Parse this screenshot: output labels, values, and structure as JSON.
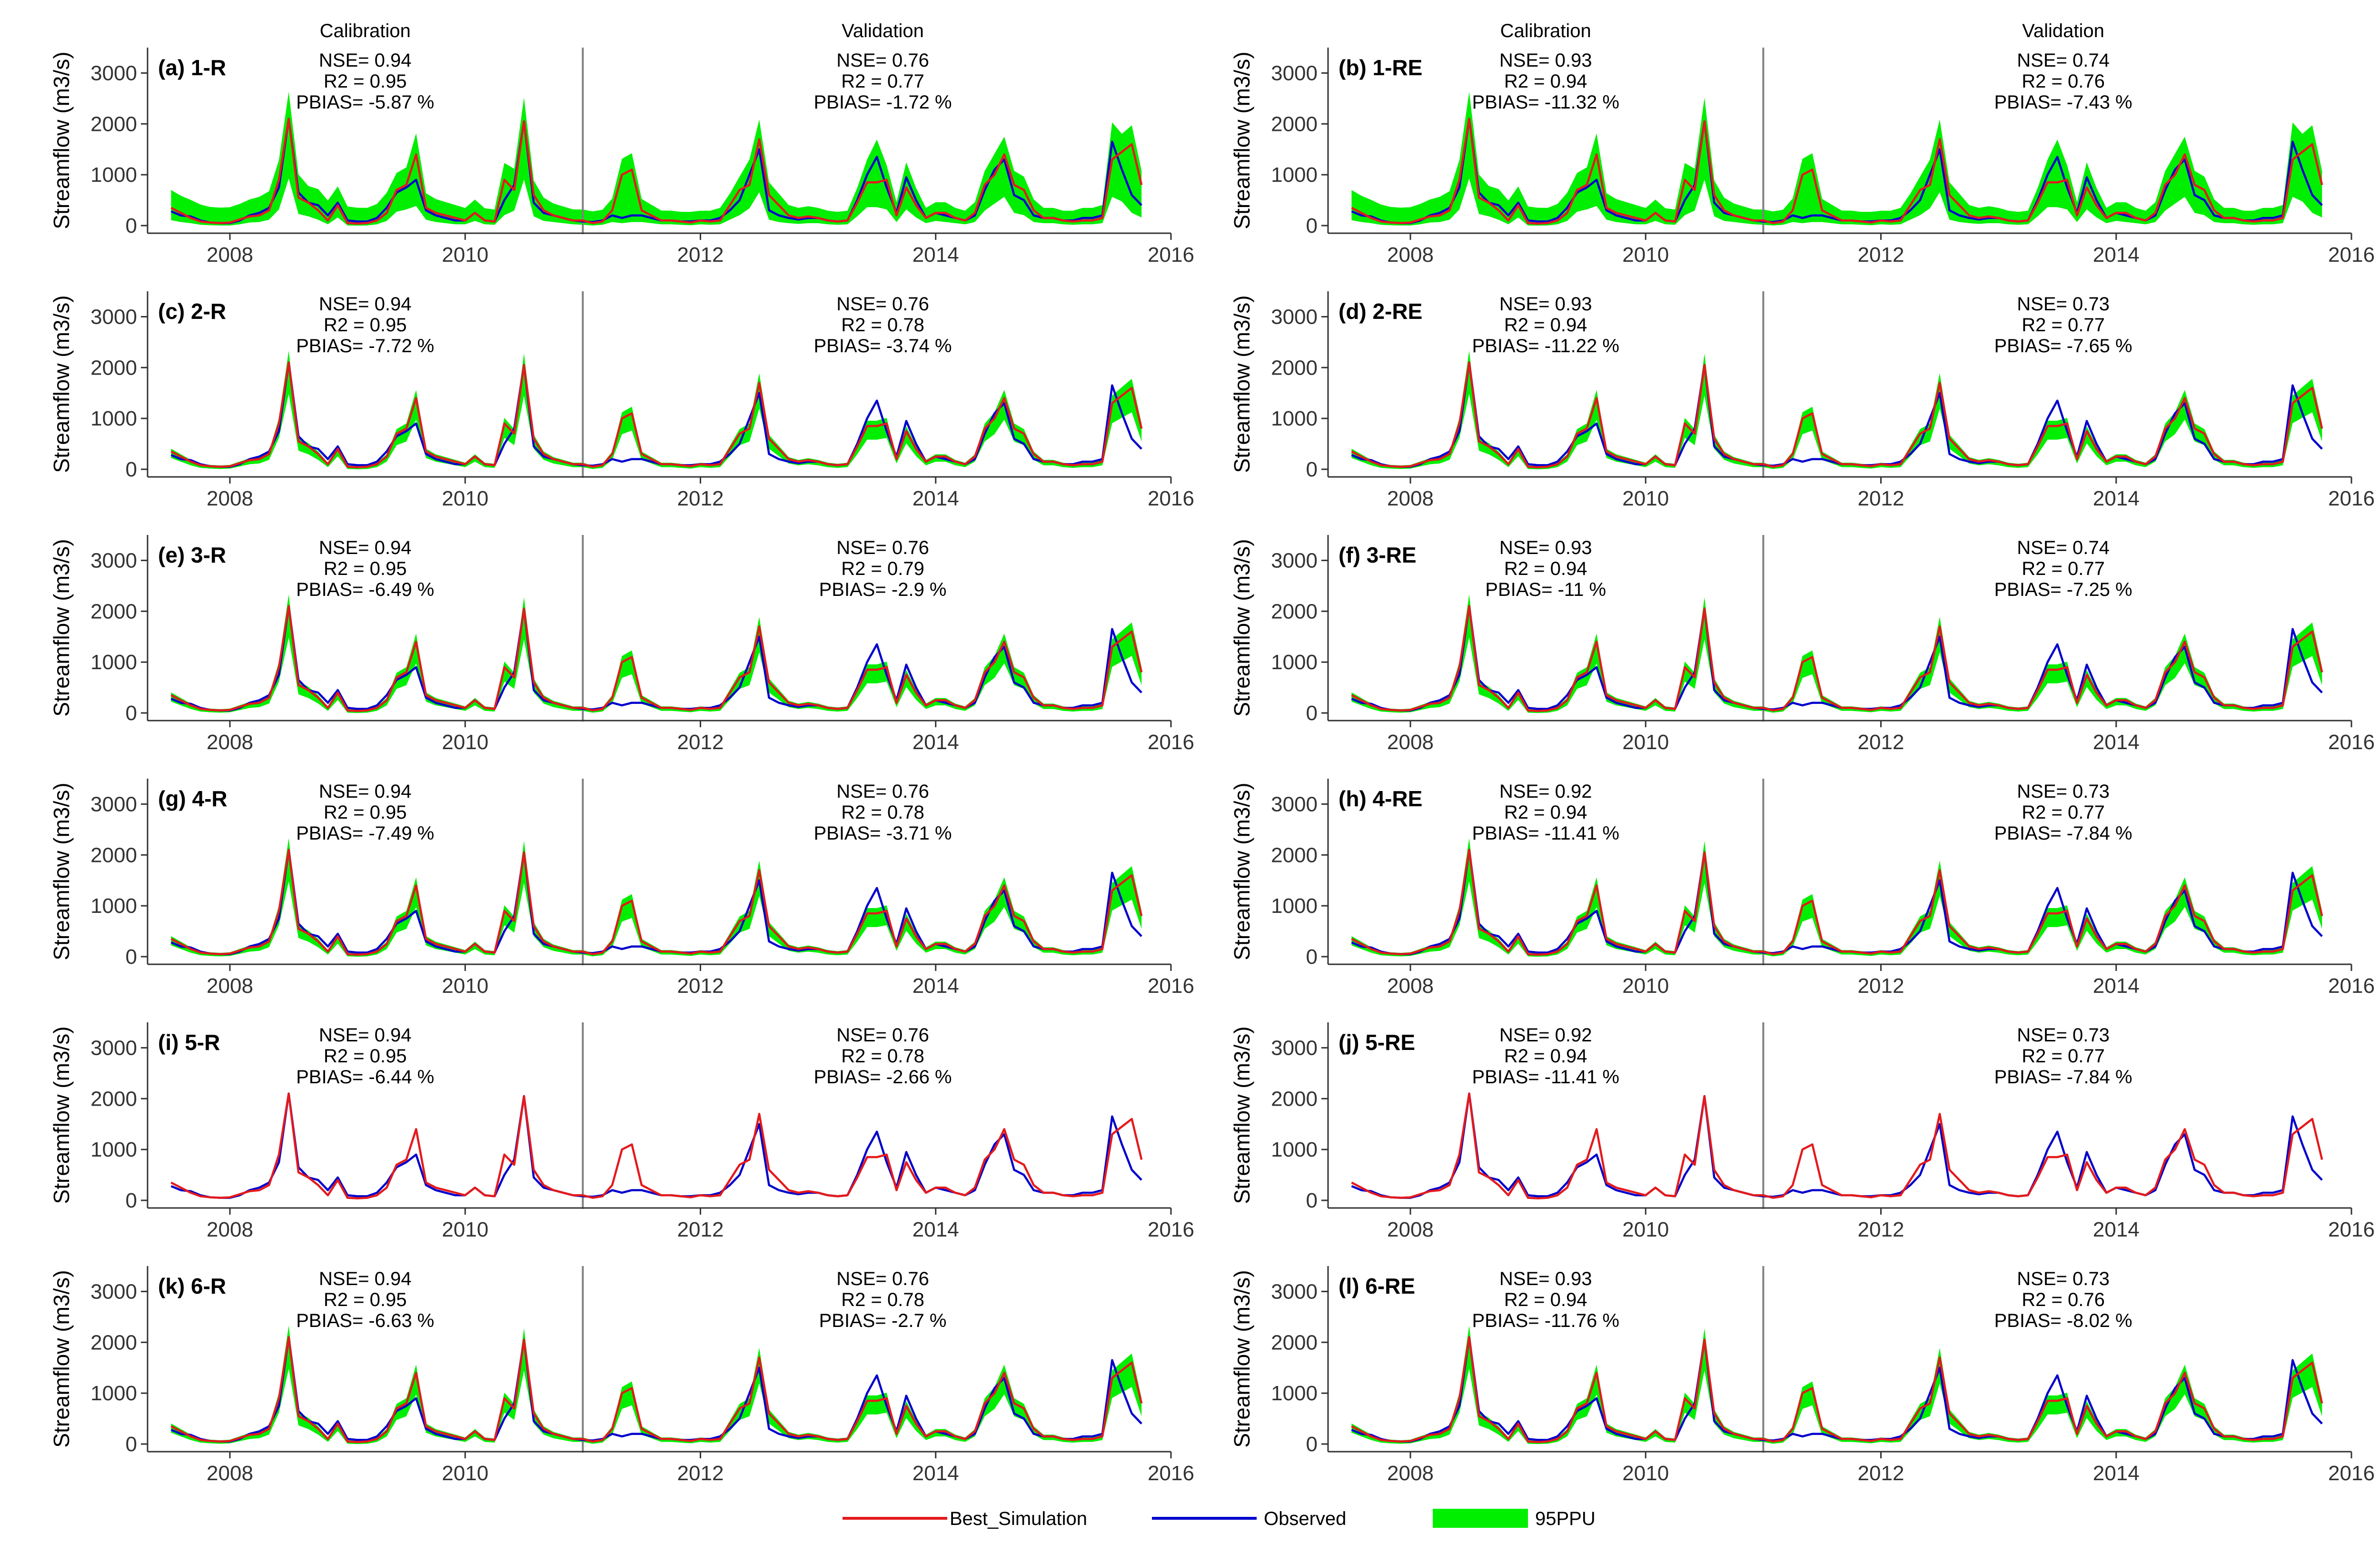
{
  "colors": {
    "best_simulation": "#e41a1c",
    "observed": "#0000cc",
    "ppu95": "#00ee00",
    "axis": "#333333",
    "split_line": "#808080"
  },
  "legend": [
    "Best_Simulation",
    "Observed",
    "95PPU"
  ],
  "chart_data": [
    {
      "type": "line",
      "panel": "(a) 1-R",
      "style": "wide",
      "ylabel": "Streamflow (m3/s)",
      "sections": [
        "Calibration",
        "Validation"
      ],
      "calibration": {
        "nse": "NSE= 0.94",
        "r2": "R2 = 0.95",
        "pbias": "PBIAS= -5.87 %"
      },
      "validation": {
        "nse": "NSE= 0.76",
        "r2": "R2 = 0.77",
        "pbias": "PBIAS= -1.72 %"
      }
    },
    {
      "type": "line",
      "panel": "(b) 1-RE",
      "style": "wide",
      "ylabel": "Streamflow (m3/s)",
      "sections": [
        "Calibration",
        "Validation"
      ],
      "calibration": {
        "nse": "NSE= 0.93",
        "r2": "R2 = 0.94",
        "pbias": "PBIAS= -11.32 %"
      },
      "validation": {
        "nse": "NSE= 0.74",
        "r2": "R2 = 0.76",
        "pbias": "PBIAS= -7.43 %"
      }
    },
    {
      "type": "line",
      "panel": "(c) 2-R",
      "style": "narrow",
      "ylabel": "Streamflow (m3/s)",
      "calibration": {
        "nse": "NSE= 0.94",
        "r2": "R2 = 0.95",
        "pbias": "PBIAS= -7.72 %"
      },
      "validation": {
        "nse": "NSE= 0.76",
        "r2": "R2 = 0.78",
        "pbias": "PBIAS= -3.74 %"
      }
    },
    {
      "type": "line",
      "panel": "(d) 2-RE",
      "style": "narrow",
      "ylabel": "Streamflow (m3/s)",
      "calibration": {
        "nse": "NSE= 0.93",
        "r2": "R2 = 0.94",
        "pbias": "PBIAS= -11.22 %"
      },
      "validation": {
        "nse": "NSE= 0.73",
        "r2": "R2 = 0.77",
        "pbias": "PBIAS= -7.65 %"
      }
    },
    {
      "type": "line",
      "panel": "(e) 3-R",
      "style": "narrow",
      "ylabel": "Streamflow (m3/s)",
      "calibration": {
        "nse": "NSE= 0.94",
        "r2": "R2 = 0.95",
        "pbias": "PBIAS= -6.49 %"
      },
      "validation": {
        "nse": "NSE= 0.76",
        "r2": "R2 = 0.79",
        "pbias": "PBIAS= -2.9 %"
      }
    },
    {
      "type": "line",
      "panel": "(f) 3-RE",
      "style": "narrow",
      "ylabel": "Streamflow (m3/s)",
      "calibration": {
        "nse": "NSE= 0.93",
        "r2": "R2 = 0.94",
        "pbias": "PBIAS= -11 %"
      },
      "validation": {
        "nse": "NSE= 0.74",
        "r2": "R2 = 0.77",
        "pbias": "PBIAS= -7.25 %"
      }
    },
    {
      "type": "line",
      "panel": "(g) 4-R",
      "style": "narrow",
      "ylabel": "Streamflow (m3/s)",
      "calibration": {
        "nse": "NSE= 0.94",
        "r2": "R2 = 0.95",
        "pbias": "PBIAS= -7.49 %"
      },
      "validation": {
        "nse": "NSE= 0.76",
        "r2": "R2 = 0.78",
        "pbias": "PBIAS= -3.71 %"
      }
    },
    {
      "type": "line",
      "panel": "(h) 4-RE",
      "style": "narrow",
      "ylabel": "Streamflow (m3/s)",
      "calibration": {
        "nse": "NSE= 0.92",
        "r2": "R2 = 0.94",
        "pbias": "PBIAS= -11.41 %"
      },
      "validation": {
        "nse": "NSE= 0.73",
        "r2": "R2 = 0.77",
        "pbias": "PBIAS= -7.84 %"
      }
    },
    {
      "type": "line",
      "panel": "(i) 5-R",
      "style": "none",
      "ylabel": "Streamflow (m3/s)",
      "calibration": {
        "nse": "NSE= 0.94",
        "r2": "R2 = 0.95",
        "pbias": "PBIAS= -6.44 %"
      },
      "validation": {
        "nse": "NSE= 0.76",
        "r2": "R2 = 0.78",
        "pbias": "PBIAS= -2.66 %"
      }
    },
    {
      "type": "line",
      "panel": "(j) 5-RE",
      "style": "none",
      "ylabel": "Streamflow (m3/s)",
      "calibration": {
        "nse": "NSE= 0.92",
        "r2": "R2 = 0.94",
        "pbias": "PBIAS= -11.41 %"
      },
      "validation": {
        "nse": "NSE= 0.73",
        "r2": "R2 = 0.77",
        "pbias": "PBIAS= -7.84 %"
      }
    },
    {
      "type": "line",
      "panel": "(k) 6-R",
      "style": "narrow",
      "ylabel": "Streamflow (m3/s)",
      "calibration": {
        "nse": "NSE= 0.94",
        "r2": "R2 = 0.95",
        "pbias": "PBIAS= -6.63 %"
      },
      "validation": {
        "nse": "NSE= 0.76",
        "r2": "R2 = 0.78",
        "pbias": "PBIAS= -2.7 %"
      }
    },
    {
      "type": "line",
      "panel": "(l) 6-RE",
      "style": "narrow",
      "ylabel": "Streamflow (m3/s)",
      "calibration": {
        "nse": "NSE= 0.93",
        "r2": "R2 = 0.94",
        "pbias": "PBIAS= -11.76 %"
      },
      "validation": {
        "nse": "NSE= 0.73",
        "r2": "R2 = 0.76",
        "pbias": "PBIAS= -8.02 %"
      }
    }
  ],
  "axes": {
    "xlim": [
      2007.3,
      2016.0
    ],
    "xticks": [
      2008,
      2010,
      2012,
      2014,
      2016
    ],
    "ylim": [
      -150,
      3500
    ],
    "yticks": [
      0,
      1000,
      2000,
      3000
    ],
    "split_x": 2011.0
  },
  "series": {
    "x": [
      2007.5,
      2007.583,
      2007.667,
      2007.75,
      2007.833,
      2007.917,
      2008.0,
      2008.083,
      2008.167,
      2008.25,
      2008.333,
      2008.417,
      2008.5,
      2008.583,
      2008.667,
      2008.75,
      2008.833,
      2008.917,
      2009.0,
      2009.083,
      2009.167,
      2009.25,
      2009.333,
      2009.417,
      2009.5,
      2009.583,
      2009.667,
      2009.75,
      2009.833,
      2009.917,
      2010.0,
      2010.083,
      2010.167,
      2010.25,
      2010.333,
      2010.417,
      2010.5,
      2010.583,
      2010.667,
      2010.75,
      2010.833,
      2010.917,
      2011.0,
      2011.083,
      2011.167,
      2011.25,
      2011.333,
      2011.417,
      2011.5,
      2011.583,
      2011.667,
      2011.75,
      2011.833,
      2011.917,
      2012.0,
      2012.083,
      2012.167,
      2012.25,
      2012.333,
      2012.417,
      2012.5,
      2012.583,
      2012.667,
      2012.75,
      2012.833,
      2012.917,
      2013.0,
      2013.083,
      2013.167,
      2013.25,
      2013.333,
      2013.417,
      2013.5,
      2013.583,
      2013.667,
      2013.75,
      2013.833,
      2013.917,
      2014.0,
      2014.083,
      2014.167,
      2014.25,
      2014.333,
      2014.417,
      2014.5,
      2014.583,
      2014.667,
      2014.75,
      2014.833,
      2014.917,
      2015.0,
      2015.083,
      2015.167,
      2015.25,
      2015.333,
      2015.417,
      2015.5,
      2015.583,
      2015.667,
      2015.75
    ],
    "observed": [
      280,
      200,
      180,
      100,
      60,
      50,
      50,
      100,
      200,
      250,
      350,
      750,
      2100,
      650,
      450,
      400,
      200,
      450,
      100,
      80,
      80,
      150,
      350,
      650,
      750,
      900,
      300,
      200,
      150,
      100,
      100,
      250,
      100,
      80,
      500,
      800,
      2050,
      450,
      250,
      200,
      150,
      100,
      80,
      70,
      100,
      200,
      150,
      200,
      200,
      150,
      100,
      100,
      80,
      80,
      100,
      100,
      150,
      300,
      500,
      1000,
      1500,
      300,
      200,
      150,
      120,
      150,
      150,
      100,
      80,
      100,
      500,
      1000,
      1350,
      750,
      250,
      950,
      500,
      150,
      250,
      200,
      150,
      100,
      200,
      700,
      1100,
      1300,
      600,
      500,
      200,
      150,
      150,
      100,
      100,
      150,
      150,
      200,
      1650,
      1100,
      600,
      400
    ],
    "simulated": [
      350,
      250,
      150,
      80,
      60,
      50,
      60,
      120,
      180,
      200,
      300,
      900,
      2100,
      550,
      450,
      300,
      100,
      400,
      50,
      40,
      50,
      100,
      250,
      700,
      800,
      1400,
      350,
      250,
      200,
      150,
      100,
      250,
      100,
      80,
      900,
      700,
      2050,
      600,
      300,
      200,
      150,
      100,
      100,
      50,
      80,
      300,
      1000,
      1100,
      300,
      200,
      100,
      100,
      80,
      60,
      100,
      80,
      100,
      400,
      700,
      800,
      1700,
      600,
      400,
      200,
      150,
      180,
      150,
      100,
      80,
      100,
      450,
      850,
      850,
      900,
      200,
      750,
      400,
      150,
      250,
      250,
      150,
      100,
      250,
      800,
      1000,
      1400,
      800,
      700,
      300,
      150,
      150,
      100,
      80,
      100,
      100,
      150,
      1300,
      1450,
      1600,
      800
    ]
  }
}
